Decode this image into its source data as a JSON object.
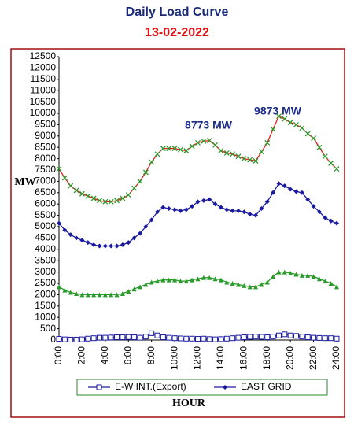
{
  "chart_data": {
    "type": "line",
    "title": "Daily Load Curve",
    "subtitle": "13-02-2022",
    "y_label": "MW",
    "x_label": "HOUR",
    "annotations": [
      "8773 MW",
      "9873 MW"
    ],
    "x": [
      0,
      0.5,
      1,
      1.5,
      2,
      2.5,
      3,
      3.5,
      4,
      4.5,
      5,
      5.5,
      6,
      6.5,
      7,
      7.5,
      8,
      8.5,
      9,
      9.5,
      10,
      10.5,
      11,
      11.5,
      12,
      12.5,
      13,
      13.5,
      14,
      14.5,
      15,
      15.5,
      16,
      16.5,
      17,
      17.5,
      18,
      18.5,
      19,
      19.5,
      20,
      20.5,
      21,
      21.5,
      22,
      22.5,
      23,
      23.5,
      24
    ],
    "xlim": [
      0,
      24
    ],
    "xticks": [
      {
        "value": 0,
        "label": "0:00"
      },
      {
        "value": 2,
        "label": "2:00"
      },
      {
        "value": 4,
        "label": "4:00"
      },
      {
        "value": 6,
        "label": "6:00"
      },
      {
        "value": 8,
        "label": "8:00"
      },
      {
        "value": 10,
        "label": "10:00"
      },
      {
        "value": 12,
        "label": "12:00"
      },
      {
        "value": 14,
        "label": "14:00"
      },
      {
        "value": 16,
        "label": "16:00"
      },
      {
        "value": 18,
        "label": "18:00"
      },
      {
        "value": 20,
        "label": "20:00"
      },
      {
        "value": 22,
        "label": "22:00"
      },
      {
        "value": 24,
        "label": "24:00"
      }
    ],
    "ylim": [
      0,
      12500
    ],
    "yticks": [
      0,
      500,
      1000,
      1500,
      2000,
      2500,
      3000,
      3500,
      4000,
      4500,
      5000,
      5500,
      6000,
      6500,
      7000,
      7500,
      8000,
      8500,
      9000,
      9500,
      10000,
      10500,
      11000,
      11500,
      12000,
      12500
    ],
    "grid": false,
    "series": [
      {
        "color": "#e02020",
        "marker": "cross",
        "marker_color": "#2a9a2a",
        "values": [
          7550,
          7150,
          6800,
          6600,
          6450,
          6350,
          6250,
          6150,
          6100,
          6100,
          6150,
          6250,
          6400,
          6700,
          7000,
          7400,
          7850,
          8200,
          8450,
          8450,
          8450,
          8400,
          8350,
          8550,
          8700,
          8773,
          8800,
          8600,
          8350,
          8250,
          8200,
          8100,
          8000,
          7950,
          7900,
          8300,
          8700,
          9300,
          9873,
          9750,
          9600,
          9500,
          9350,
          9100,
          8900,
          8500,
          8100,
          7800,
          7550
        ]
      },
      {
        "name": "EAST GRID",
        "color": "#1a1aa0",
        "marker": "diamond",
        "marker_color": "#1a1aa0",
        "values": [
          5150,
          4850,
          4650,
          4500,
          4400,
          4300,
          4200,
          4150,
          4150,
          4150,
          4150,
          4200,
          4300,
          4500,
          4700,
          5000,
          5300,
          5650,
          5850,
          5800,
          5750,
          5700,
          5750,
          5900,
          6100,
          6150,
          6200,
          6000,
          5850,
          5750,
          5700,
          5700,
          5650,
          5550,
          5500,
          5800,
          6100,
          6500,
          6900,
          6800,
          6650,
          6550,
          6500,
          6200,
          5900,
          5650,
          5400,
          5250,
          5150
        ]
      },
      {
        "color": "#2a9a2a",
        "marker": "triangle",
        "marker_color": "#2a9a2a",
        "values": [
          2350,
          2200,
          2100,
          2050,
          2000,
          2000,
          2000,
          2000,
          2000,
          2000,
          2000,
          2050,
          2150,
          2250,
          2350,
          2450,
          2550,
          2600,
          2650,
          2650,
          2650,
          2600,
          2600,
          2650,
          2700,
          2750,
          2750,
          2700,
          2650,
          2550,
          2500,
          2450,
          2400,
          2350,
          2350,
          2450,
          2550,
          2800,
          3000,
          3000,
          2950,
          2900,
          2850,
          2850,
          2800,
          2700,
          2600,
          2500,
          2350
        ]
      },
      {
        "name": "E-W INT.(Export)",
        "color": "#1a1aa0",
        "marker": "square",
        "marker_color": "#1a1aa0",
        "values": [
          50,
          30,
          20,
          20,
          30,
          60,
          80,
          100,
          100,
          110,
          120,
          120,
          130,
          120,
          100,
          150,
          300,
          200,
          120,
          100,
          80,
          70,
          60,
          60,
          50,
          60,
          40,
          30,
          40,
          60,
          80,
          100,
          120,
          140,
          150,
          140,
          120,
          150,
          200,
          250,
          200,
          180,
          150,
          120,
          100,
          90,
          80,
          80,
          60
        ]
      }
    ],
    "legend_order": [
      3,
      1
    ]
  }
}
